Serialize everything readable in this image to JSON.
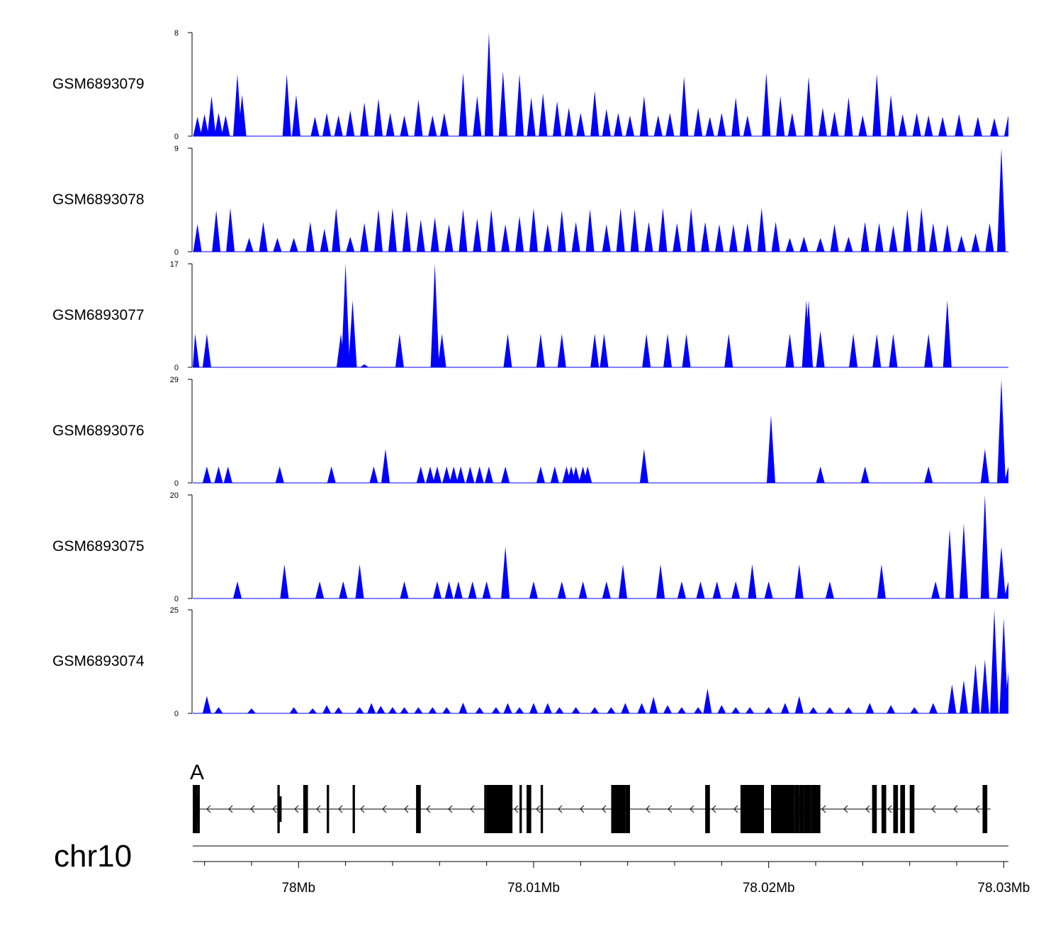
{
  "chart_data": {
    "type": "area",
    "title": "",
    "chromosome": "chr10",
    "x_range_mb": [
      77.9955,
      78.0302
    ],
    "genome_ticks": {
      "labels": [
        "78Mb",
        "78.01Mb",
        "78.02Mb",
        "78.03Mb"
      ],
      "values": [
        78.0,
        78.01,
        78.02,
        78.03
      ],
      "minor_step_mb": 0.002
    },
    "fill_color": "#0000ff",
    "series": [
      {
        "name": "GSM6893079",
        "ylim": [
          0,
          8
        ],
        "peaks": [
          [
            77.9957,
            1.5
          ],
          [
            77.996,
            1.7
          ],
          [
            77.9963,
            3.1
          ],
          [
            77.9966,
            1.8
          ],
          [
            77.9969,
            1.6
          ],
          [
            77.9974,
            4.8
          ],
          [
            77.9976,
            3.2
          ],
          [
            77.9995,
            4.8
          ],
          [
            77.9999,
            3.2
          ],
          [
            78.0007,
            1.5
          ],
          [
            78.0012,
            1.8
          ],
          [
            78.0017,
            1.6
          ],
          [
            78.0022,
            2.0
          ],
          [
            78.0028,
            2.6
          ],
          [
            78.0034,
            2.9
          ],
          [
            78.0039,
            1.8
          ],
          [
            78.0045,
            1.6
          ],
          [
            78.0051,
            2.8
          ],
          [
            78.0057,
            1.6
          ],
          [
            78.0062,
            1.8
          ],
          [
            78.007,
            4.9
          ],
          [
            78.0076,
            3.1
          ],
          [
            78.0081,
            8.0
          ],
          [
            78.0087,
            5.0
          ],
          [
            78.0094,
            4.8
          ],
          [
            78.0099,
            3.0
          ],
          [
            78.0104,
            3.3
          ],
          [
            78.011,
            2.7
          ],
          [
            78.0115,
            2.2
          ],
          [
            78.012,
            1.8
          ],
          [
            78.0126,
            3.5
          ],
          [
            78.0131,
            2.1
          ],
          [
            78.0136,
            1.8
          ],
          [
            78.0141,
            1.6
          ],
          [
            78.0147,
            3.1
          ],
          [
            78.0153,
            1.6
          ],
          [
            78.0158,
            1.8
          ],
          [
            78.0164,
            4.6
          ],
          [
            78.017,
            2.2
          ],
          [
            78.0175,
            1.5
          ],
          [
            78.018,
            1.8
          ],
          [
            78.0186,
            3.0
          ],
          [
            78.0191,
            1.6
          ],
          [
            78.0199,
            4.9
          ],
          [
            78.0205,
            3.1
          ],
          [
            78.021,
            1.8
          ],
          [
            78.0217,
            4.6
          ],
          [
            78.0223,
            2.2
          ],
          [
            78.0228,
            1.9
          ],
          [
            78.0234,
            3.0
          ],
          [
            78.024,
            1.6
          ],
          [
            78.0246,
            4.8
          ],
          [
            78.0252,
            3.2
          ],
          [
            78.0257,
            1.7
          ],
          [
            78.0263,
            1.8
          ],
          [
            78.0268,
            1.6
          ],
          [
            78.0274,
            1.5
          ],
          [
            78.0281,
            1.7
          ],
          [
            78.0289,
            1.5
          ],
          [
            78.0296,
            1.4
          ],
          [
            78.0302,
            1.6
          ]
        ]
      },
      {
        "name": "GSM6893078",
        "ylim": [
          0,
          9
        ],
        "peaks": [
          [
            77.9957,
            2.4
          ],
          [
            77.9965,
            3.6
          ],
          [
            77.9971,
            3.8
          ],
          [
            77.9979,
            1.2
          ],
          [
            77.9985,
            2.6
          ],
          [
            77.9991,
            1.2
          ],
          [
            77.9998,
            1.2
          ],
          [
            78.0005,
            2.6
          ],
          [
            78.0011,
            2.0
          ],
          [
            78.0016,
            3.8
          ],
          [
            78.0022,
            1.3
          ],
          [
            78.0028,
            2.5
          ],
          [
            78.0034,
            3.7
          ],
          [
            78.004,
            3.8
          ],
          [
            78.0046,
            3.6
          ],
          [
            78.0052,
            2.8
          ],
          [
            78.0058,
            3.0
          ],
          [
            78.0064,
            2.4
          ],
          [
            78.007,
            3.7
          ],
          [
            78.0076,
            2.9
          ],
          [
            78.0082,
            3.7
          ],
          [
            78.0088,
            2.4
          ],
          [
            78.0094,
            3.1
          ],
          [
            78.01,
            3.8
          ],
          [
            78.0106,
            2.4
          ],
          [
            78.0112,
            3.6
          ],
          [
            78.0118,
            2.6
          ],
          [
            78.0124,
            3.7
          ],
          [
            78.0131,
            2.4
          ],
          [
            78.0137,
            3.8
          ],
          [
            78.0143,
            3.7
          ],
          [
            78.0149,
            2.6
          ],
          [
            78.0155,
            3.8
          ],
          [
            78.0161,
            2.5
          ],
          [
            78.0167,
            3.8
          ],
          [
            78.0173,
            2.6
          ],
          [
            78.0179,
            2.4
          ],
          [
            78.0185,
            2.4
          ],
          [
            78.0191,
            2.5
          ],
          [
            78.0197,
            3.8
          ],
          [
            78.0203,
            2.6
          ],
          [
            78.0209,
            1.2
          ],
          [
            78.0215,
            1.3
          ],
          [
            78.0222,
            1.2
          ],
          [
            78.0228,
            2.4
          ],
          [
            78.0234,
            1.3
          ],
          [
            78.0241,
            2.6
          ],
          [
            78.0247,
            2.5
          ],
          [
            78.0253,
            2.3
          ],
          [
            78.0259,
            3.7
          ],
          [
            78.0265,
            3.8
          ],
          [
            78.027,
            2.5
          ],
          [
            78.0276,
            2.4
          ],
          [
            78.0282,
            1.4
          ],
          [
            78.0288,
            1.6
          ],
          [
            78.0294,
            2.5
          ],
          [
            78.0299,
            9.0
          ]
        ]
      },
      {
        "name": "GSM6893077",
        "ylim": [
          0,
          17
        ],
        "peaks": [
          [
            77.9956,
            5.5
          ],
          [
            77.9961,
            5.5
          ],
          [
            78.0018,
            5.5
          ],
          [
            78.002,
            17.0
          ],
          [
            78.0023,
            11.0
          ],
          [
            78.0028,
            0.5
          ],
          [
            78.0043,
            5.5
          ],
          [
            78.0058,
            17.0
          ],
          [
            78.0061,
            5.5
          ],
          [
            78.0089,
            5.5
          ],
          [
            78.0103,
            5.5
          ],
          [
            78.0112,
            5.5
          ],
          [
            78.0126,
            5.5
          ],
          [
            78.013,
            5.5
          ],
          [
            78.0148,
            5.5
          ],
          [
            78.0157,
            5.5
          ],
          [
            78.0165,
            5.5
          ],
          [
            78.0183,
            5.5
          ],
          [
            78.0209,
            5.5
          ],
          [
            78.0216,
            11.0
          ],
          [
            78.0217,
            11.0
          ],
          [
            78.0222,
            6.0
          ],
          [
            78.0236,
            5.5
          ],
          [
            78.0246,
            5.5
          ],
          [
            78.0253,
            5.5
          ],
          [
            78.0268,
            5.5
          ],
          [
            78.0276,
            11.0
          ]
        ]
      },
      {
        "name": "GSM6893076",
        "ylim": [
          0,
          29
        ],
        "peaks": [
          [
            77.9961,
            4.6
          ],
          [
            77.9966,
            4.6
          ],
          [
            77.997,
            4.6
          ],
          [
            77.9992,
            4.6
          ],
          [
            78.0014,
            4.6
          ],
          [
            78.0032,
            4.6
          ],
          [
            78.0037,
            9.5
          ],
          [
            78.0052,
            4.6
          ],
          [
            78.0056,
            4.6
          ],
          [
            78.0059,
            4.6
          ],
          [
            78.0063,
            4.6
          ],
          [
            78.0066,
            4.6
          ],
          [
            78.0069,
            4.6
          ],
          [
            78.0073,
            4.6
          ],
          [
            78.0077,
            4.6
          ],
          [
            78.0081,
            4.6
          ],
          [
            78.0088,
            4.6
          ],
          [
            78.0103,
            4.6
          ],
          [
            78.0109,
            4.6
          ],
          [
            78.0114,
            4.6
          ],
          [
            78.0116,
            4.6
          ],
          [
            78.0118,
            4.6
          ],
          [
            78.0121,
            4.6
          ],
          [
            78.0123,
            4.6
          ],
          [
            78.0147,
            9.5
          ],
          [
            78.0201,
            19.0
          ],
          [
            78.0222,
            4.6
          ],
          [
            78.0241,
            4.6
          ],
          [
            78.0268,
            4.6
          ],
          [
            78.0292,
            9.5
          ],
          [
            78.0299,
            29.0
          ],
          [
            78.0302,
            4.6
          ]
        ]
      },
      {
        "name": "GSM6893075",
        "ylim": [
          0,
          20
        ],
        "peaks": [
          [
            77.9974,
            3.3
          ],
          [
            77.9994,
            6.6
          ],
          [
            78.0009,
            3.3
          ],
          [
            78.0019,
            3.3
          ],
          [
            78.0026,
            6.6
          ],
          [
            78.0045,
            3.3
          ],
          [
            78.0059,
            3.3
          ],
          [
            78.0064,
            3.3
          ],
          [
            78.0068,
            3.3
          ],
          [
            78.0074,
            3.3
          ],
          [
            78.008,
            3.3
          ],
          [
            78.0088,
            10.0
          ],
          [
            78.01,
            3.3
          ],
          [
            78.0112,
            3.3
          ],
          [
            78.0121,
            3.3
          ],
          [
            78.0131,
            3.3
          ],
          [
            78.0138,
            6.6
          ],
          [
            78.0154,
            6.6
          ],
          [
            78.0163,
            3.3
          ],
          [
            78.0171,
            3.3
          ],
          [
            78.0178,
            3.3
          ],
          [
            78.0186,
            3.3
          ],
          [
            78.0193,
            6.6
          ],
          [
            78.02,
            3.3
          ],
          [
            78.0213,
            6.6
          ],
          [
            78.0226,
            3.3
          ],
          [
            78.0248,
            6.6
          ],
          [
            78.0271,
            3.3
          ],
          [
            78.0277,
            13.3
          ],
          [
            78.0283,
            14.5
          ],
          [
            78.0292,
            20.0
          ],
          [
            78.0299,
            10.0
          ],
          [
            78.0302,
            3.3
          ]
        ]
      },
      {
        "name": "GSM6893074",
        "ylim": [
          0,
          25
        ],
        "peaks": [
          [
            77.9961,
            4.2
          ],
          [
            77.9966,
            1.5
          ],
          [
            77.998,
            1.2
          ],
          [
            77.9998,
            1.5
          ],
          [
            78.0006,
            1.2
          ],
          [
            78.0012,
            2.0
          ],
          [
            78.0017,
            1.5
          ],
          [
            78.0026,
            1.5
          ],
          [
            78.0031,
            2.5
          ],
          [
            78.0035,
            1.8
          ],
          [
            78.004,
            1.5
          ],
          [
            78.0045,
            1.5
          ],
          [
            78.0051,
            1.5
          ],
          [
            78.0057,
            1.5
          ],
          [
            78.0063,
            1.5
          ],
          [
            78.007,
            2.6
          ],
          [
            78.0077,
            1.5
          ],
          [
            78.0084,
            1.5
          ],
          [
            78.0089,
            2.5
          ],
          [
            78.0094,
            1.5
          ],
          [
            78.01,
            2.5
          ],
          [
            78.0106,
            2.5
          ],
          [
            78.0111,
            1.5
          ],
          [
            78.0118,
            1.5
          ],
          [
            78.0126,
            1.5
          ],
          [
            78.0133,
            1.5
          ],
          [
            78.0139,
            2.5
          ],
          [
            78.0146,
            2.5
          ],
          [
            78.0151,
            4.0
          ],
          [
            78.0157,
            2.0
          ],
          [
            78.0163,
            1.5
          ],
          [
            78.017,
            1.5
          ],
          [
            78.0174,
            6.0
          ],
          [
            78.018,
            2.0
          ],
          [
            78.0186,
            1.5
          ],
          [
            78.0192,
            1.5
          ],
          [
            78.02,
            1.5
          ],
          [
            78.0207,
            2.5
          ],
          [
            78.0213,
            4.2
          ],
          [
            78.0219,
            1.5
          ],
          [
            78.0226,
            1.5
          ],
          [
            78.0234,
            1.5
          ],
          [
            78.0243,
            2.5
          ],
          [
            78.0252,
            2.0
          ],
          [
            78.0262,
            1.5
          ],
          [
            78.027,
            2.5
          ],
          [
            78.0278,
            7.0
          ],
          [
            78.0283,
            8.0
          ],
          [
            78.0288,
            12.0
          ],
          [
            78.0292,
            13.0
          ],
          [
            78.0296,
            25.0
          ],
          [
            78.03,
            23.0
          ],
          [
            78.0302,
            10.0
          ]
        ]
      }
    ],
    "gene_track": {
      "visible_label": "A",
      "strand": "-",
      "exons_mb": [
        [
          77.9955,
          77.9957
        ],
        [
          77.9957,
          77.9958
        ],
        [
          77.9991,
          77.9992
        ],
        [
          78.0002,
          78.0004
        ],
        [
          78.0012,
          78.0013
        ],
        [
          78.0023,
          78.0024
        ],
        [
          78.005,
          78.0052
        ],
        [
          78.0079,
          78.008
        ],
        [
          78.008,
          78.0091
        ],
        [
          78.0094,
          78.0095
        ],
        [
          78.0097,
          78.0099
        ],
        [
          78.0103,
          78.0104
        ],
        [
          78.0133,
          78.0139
        ],
        [
          78.0139,
          78.0141
        ],
        [
          78.0173,
          78.0175
        ],
        [
          78.0188,
          78.0198
        ],
        [
          78.0201,
          78.0211
        ],
        [
          78.0211,
          78.0213
        ],
        [
          78.0213,
          78.0215
        ],
        [
          78.0215,
          78.0218
        ],
        [
          78.0218,
          78.022
        ],
        [
          78.022,
          78.0222
        ],
        [
          78.0244,
          78.0246
        ],
        [
          78.0248,
          78.025
        ],
        [
          78.0253,
          78.0255
        ],
        [
          78.0256,
          78.0258
        ],
        [
          78.026,
          78.0262
        ],
        [
          78.0291,
          78.0293
        ]
      ],
      "thin_exons_mb": [
        77.9956,
        77.9991,
        78.0081,
        78.0213
      ]
    }
  }
}
